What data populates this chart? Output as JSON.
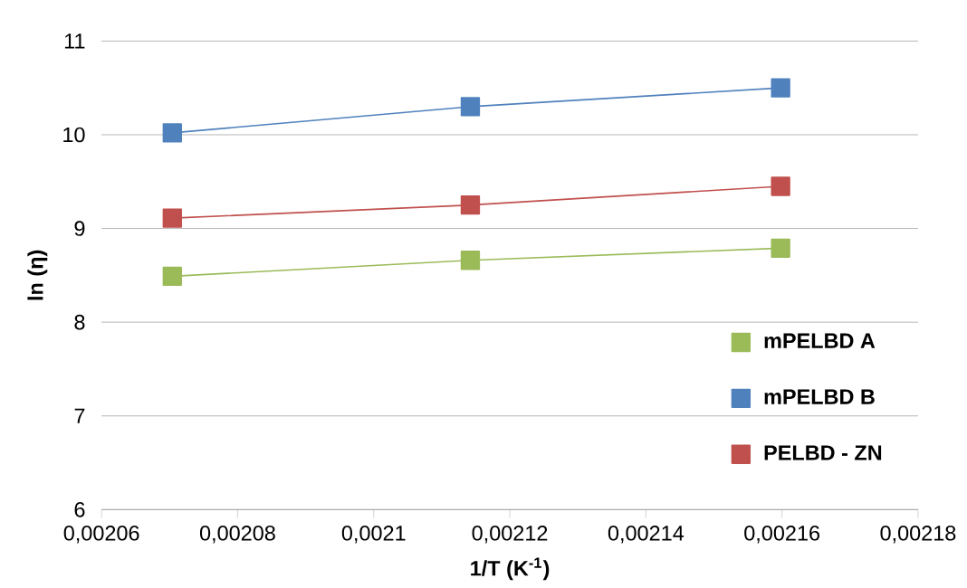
{
  "chart_data": {
    "type": "line",
    "xlabel": "1/T (K$^{-1}$)",
    "ylabel": "ln (η)",
    "x": [
      0.0020704,
      0.0021142,
      0.0021598
    ],
    "series": [
      {
        "name": "mPELBD A",
        "color": "#9bbb59",
        "values": [
          8.49,
          8.66,
          8.79
        ]
      },
      {
        "name": "mPELBD B",
        "color": "#4f81bd",
        "values": [
          10.02,
          10.3,
          10.5
        ]
      },
      {
        "name": "PELBD - ZN",
        "color": "#c0504d",
        "values": [
          9.11,
          9.25,
          9.45
        ]
      }
    ],
    "xlim": [
      0.00206,
      0.00218
    ],
    "xticks": [
      {
        "value": 0.00206,
        "label": "0,00206"
      },
      {
        "value": 0.00208,
        "label": "0,00208"
      },
      {
        "value": 0.0021,
        "label": "0,0021"
      },
      {
        "value": 0.00212,
        "label": "0,00212"
      },
      {
        "value": 0.00214,
        "label": "0,00214"
      },
      {
        "value": 0.00216,
        "label": "0,00216"
      },
      {
        "value": 0.00218,
        "label": "0,00218"
      }
    ],
    "ylim": [
      6,
      11
    ],
    "yticks": [
      6,
      7,
      8,
      9,
      10,
      11
    ],
    "grid": "y",
    "legend": "bottom right",
    "marker": "square",
    "line_style": "solid"
  }
}
